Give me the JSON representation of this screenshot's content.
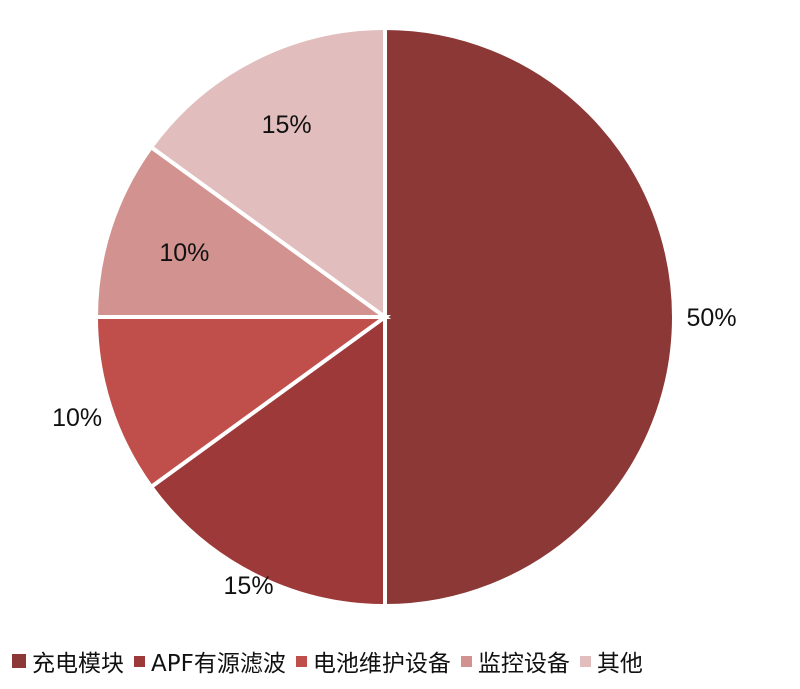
{
  "chart_data": {
    "type": "pie",
    "title": "",
    "start": "top",
    "direction": "clockwise",
    "slices": [
      {
        "name": "充电模块",
        "value": 50,
        "label": "50%",
        "color": "#8B3836"
      },
      {
        "name": "APF有源滤波",
        "value": 15,
        "label": "15%",
        "color": "#9D3A39"
      },
      {
        "name": "电池维护设备",
        "value": 10,
        "label": "10%",
        "color": "#C04F4C"
      },
      {
        "name": "监控设备",
        "value": 10,
        "label": "10%",
        "color": "#D29290"
      },
      {
        "name": "其他",
        "value": 15,
        "label": "15%",
        "color": "#E2BDBD"
      }
    ],
    "legend_placement": "bottom"
  }
}
